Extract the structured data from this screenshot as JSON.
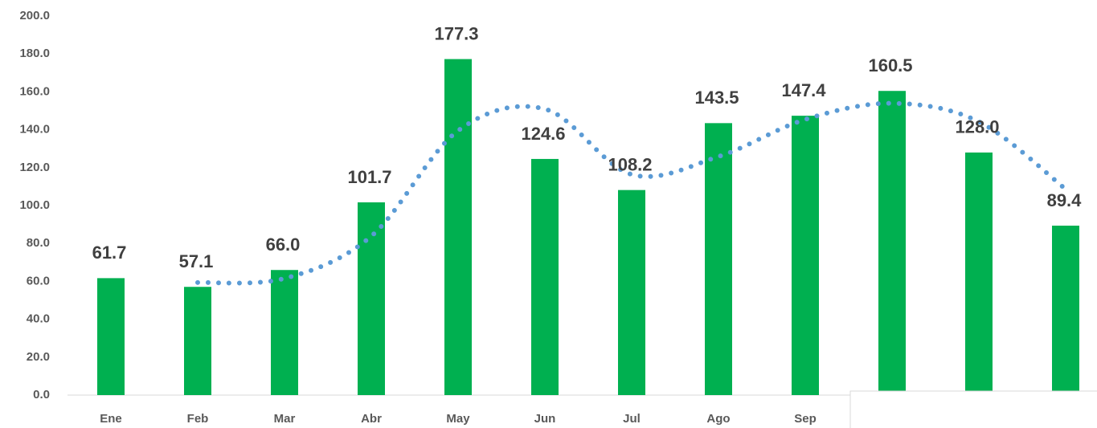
{
  "chart_data": {
    "type": "bar",
    "categories": [
      "Ene",
      "Feb",
      "Mar",
      "Abr",
      "May",
      "Jun",
      "Jul",
      "Ago",
      "Sep",
      null,
      null,
      null
    ],
    "values": [
      61.7,
      57.1,
      66.0,
      101.7,
      177.3,
      124.6,
      108.2,
      143.5,
      147.4,
      160.5,
      128.0,
      89.4
    ],
    "value_labels": [
      "61.7",
      "57.1",
      "66.0",
      "101.7",
      "177.3",
      "124.6",
      "108.2",
      "143.5",
      "147.4",
      "160.5",
      "128.0",
      "89.4"
    ],
    "color": "#00b050",
    "trendline": {
      "color": "#5b9bd5",
      "values": [
        null,
        59.4,
        61.55,
        83.85,
        139.5,
        150.95,
        116.4,
        125.85,
        145.45,
        153.95,
        144.25,
        108.7
      ]
    },
    "ylim": [
      0,
      200
    ],
    "yticks": [
      {
        "value": 0,
        "label": "0.0"
      },
      {
        "value": 20,
        "label": "20.0"
      },
      {
        "value": 40,
        "label": "40.0"
      },
      {
        "value": 60,
        "label": "60.0"
      },
      {
        "value": 80,
        "label": "80.0"
      },
      {
        "value": 100,
        "label": "100.0"
      },
      {
        "value": 120,
        "label": "120.0"
      },
      {
        "value": 140,
        "label": "140.0"
      },
      {
        "value": 160,
        "label": "160.0"
      },
      {
        "value": 180,
        "label": "180.0"
      },
      {
        "value": 200,
        "label": "200.0"
      }
    ],
    "grid": false
  }
}
